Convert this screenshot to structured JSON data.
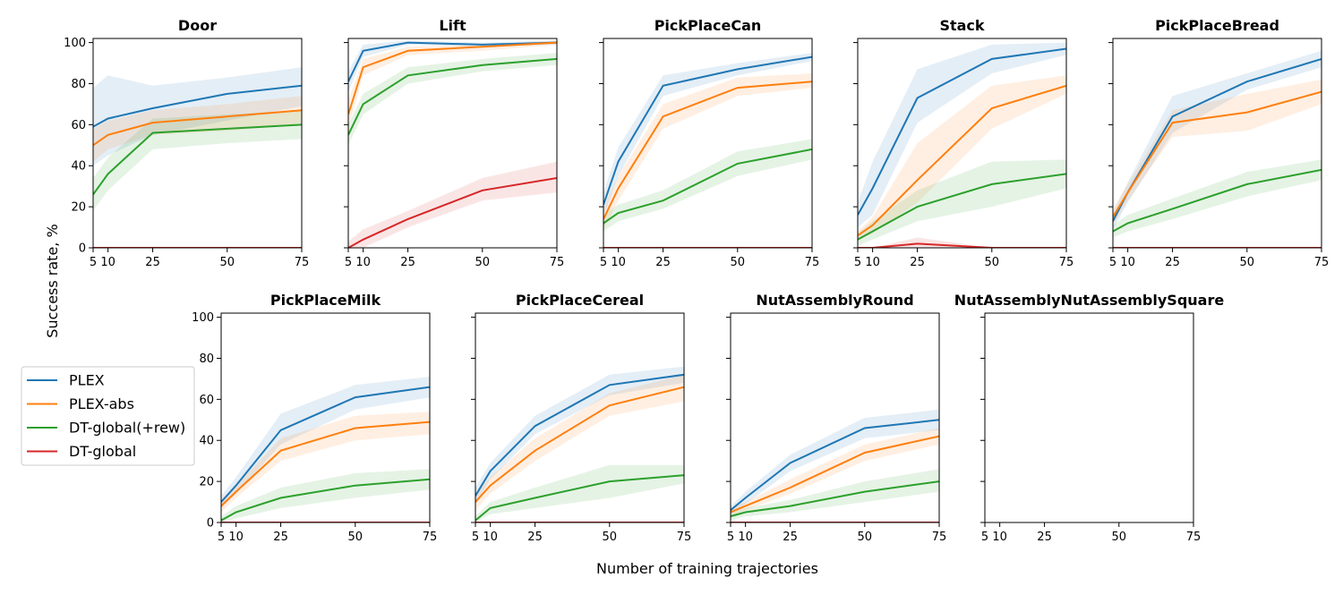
{
  "chart_data": {
    "type": "line",
    "xlabel": "Number of training trajectories",
    "ylabel": "Success rate, %",
    "x": [
      5,
      10,
      25,
      50,
      75
    ],
    "xticks": [
      "5",
      "10",
      "25",
      "50",
      "75"
    ],
    "yticks": [
      "0",
      "20",
      "40",
      "60",
      "80",
      "100"
    ],
    "ylim": [
      0,
      102
    ],
    "xlim": [
      5,
      75
    ],
    "grid": false,
    "legend_position": "left",
    "series_styles": [
      {
        "name": "PLEX",
        "color": "#1f77b4"
      },
      {
        "name": "PLEX-abs",
        "color": "#ff7f0e"
      },
      {
        "name": "DT-global(+rew)",
        "color": "#2ca02c"
      },
      {
        "name": "DT-global",
        "color": "#d62728"
      }
    ],
    "panels": [
      {
        "title": "Door",
        "series": [
          {
            "name": "PLEX",
            "values": [
              59,
              63,
              68,
              75,
              79
            ],
            "lower": [
              40,
              45,
              55,
              62,
              69
            ],
            "upper": [
              78,
              84,
              79,
              83,
              88
            ]
          },
          {
            "name": "PLEX-abs",
            "values": [
              50,
              55,
              61,
              64,
              67
            ],
            "lower": [
              42,
              48,
              55,
              57,
              60
            ],
            "upper": [
              58,
              62,
              67,
              70,
              74
            ]
          },
          {
            "name": "DT-global(+rew)",
            "values": [
              26,
              36,
              56,
              58,
              60
            ],
            "lower": [
              18,
              28,
              48,
              51,
              53
            ],
            "upper": [
              34,
              44,
              63,
              65,
              67
            ]
          },
          {
            "name": "DT-global",
            "values": [
              0,
              0,
              0,
              0,
              0
            ],
            "lower": [
              0,
              0,
              0,
              0,
              0
            ],
            "upper": [
              0,
              0,
              0,
              0,
              0
            ]
          }
        ]
      },
      {
        "title": "Lift",
        "series": [
          {
            "name": "PLEX",
            "values": [
              81,
              96,
              100,
              99,
              100
            ],
            "lower": [
              76,
              93,
              99,
              98,
              99
            ],
            "upper": [
              86,
              99,
              101,
              100,
              101
            ]
          },
          {
            "name": "PLEX-abs",
            "values": [
              65,
              88,
              96,
              98,
              100
            ],
            "lower": [
              58,
              84,
              94,
              96,
              99
            ],
            "upper": [
              72,
              92,
              98,
              99,
              101
            ]
          },
          {
            "name": "DT-global(+rew)",
            "values": [
              55,
              70,
              84,
              89,
              92
            ],
            "lower": [
              50,
              65,
              80,
              86,
              89
            ],
            "upper": [
              60,
              75,
              88,
              92,
              95
            ]
          },
          {
            "name": "DT-global",
            "values": [
              0,
              4,
              14,
              28,
              34
            ],
            "lower": [
              0,
              0,
              10,
              23,
              27
            ],
            "upper": [
              3,
              9,
              18,
              34,
              42
            ]
          }
        ]
      },
      {
        "title": "PickPlaceCan",
        "series": [
          {
            "name": "PLEX",
            "values": [
              21,
              42,
              79,
              87,
              93
            ],
            "lower": [
              15,
              35,
              74,
              84,
              91
            ],
            "upper": [
              27,
              49,
              84,
              90,
              95
            ]
          },
          {
            "name": "PLEX-abs",
            "values": [
              14,
              29,
              64,
              78,
              81
            ],
            "lower": [
              9,
              23,
              58,
              74,
              78
            ],
            "upper": [
              19,
              35,
              70,
              83,
              85
            ]
          },
          {
            "name": "DT-global(+rew)",
            "values": [
              12,
              17,
              23,
              41,
              48
            ],
            "lower": [
              8,
              13,
              19,
              35,
              43
            ],
            "upper": [
              16,
              21,
              28,
              47,
              53
            ]
          },
          {
            "name": "DT-global",
            "values": [
              0,
              0,
              0,
              0,
              0
            ],
            "lower": [
              0,
              0,
              0,
              0,
              0
            ],
            "upper": [
              0,
              0,
              0,
              0,
              0
            ]
          }
        ]
      },
      {
        "title": "Stack",
        "series": [
          {
            "name": "PLEX",
            "values": [
              16,
              29,
              73,
              92,
              97
            ],
            "lower": [
              10,
              16,
              61,
              85,
              94
            ],
            "upper": [
              22,
              42,
              87,
              99,
              100
            ]
          },
          {
            "name": "PLEX-abs",
            "values": [
              6,
              11,
              33,
              68,
              79
            ],
            "lower": [
              4,
              7,
              22,
              58,
              75
            ],
            "upper": [
              8,
              15,
              51,
              79,
              84
            ]
          },
          {
            "name": "DT-global(+rew)",
            "values": [
              4,
              8,
              20,
              31,
              36
            ],
            "lower": [
              1,
              4,
              13,
              20,
              29
            ],
            "upper": [
              7,
              13,
              28,
              42,
              43
            ]
          },
          {
            "name": "DT-global",
            "values": [
              0,
              0,
              2,
              0,
              0
            ],
            "lower": [
              0,
              0,
              0,
              0,
              0
            ],
            "upper": [
              0,
              0,
              5,
              0,
              0
            ]
          }
        ]
      },
      {
        "title": "PickPlaceBread",
        "series": [
          {
            "name": "PLEX",
            "values": [
              13,
              27,
              64,
              81,
              92
            ],
            "lower": [
              9,
              22,
              56,
              77,
              88
            ],
            "upper": [
              17,
              32,
              74,
              85,
              96
            ]
          },
          {
            "name": "PLEX-abs",
            "values": [
              15,
              27,
              61,
              66,
              76
            ],
            "lower": [
              11,
              23,
              54,
              57,
              70
            ],
            "upper": [
              19,
              31,
              67,
              75,
              82
            ]
          },
          {
            "name": "DT-global(+rew)",
            "values": [
              8,
              12,
              19,
              31,
              38
            ],
            "lower": [
              5,
              8,
              14,
              25,
              33
            ],
            "upper": [
              11,
              16,
              24,
              37,
              43
            ]
          },
          {
            "name": "DT-global",
            "values": [
              0,
              0,
              0,
              0,
              0
            ],
            "lower": [
              0,
              0,
              0,
              0,
              0
            ],
            "upper": [
              0,
              0,
              0,
              0,
              0
            ]
          }
        ]
      },
      {
        "title": "PickPlaceMilk",
        "series": [
          {
            "name": "PLEX",
            "values": [
              10,
              18,
              45,
              61,
              66
            ],
            "lower": [
              7,
              14,
              38,
              55,
              61
            ],
            "upper": [
              13,
              22,
              53,
              67,
              71
            ]
          },
          {
            "name": "PLEX-abs",
            "values": [
              8,
              15,
              35,
              46,
              49
            ],
            "lower": [
              5,
              12,
              30,
              40,
              43
            ],
            "upper": [
              11,
              18,
              41,
              52,
              54
            ]
          },
          {
            "name": "DT-global(+rew)",
            "values": [
              1,
              5,
              12,
              18,
              21
            ],
            "lower": [
              0,
              2,
              7,
              12,
              16
            ],
            "upper": [
              3,
              8,
              17,
              24,
              26
            ]
          },
          {
            "name": "DT-global",
            "values": [
              0,
              0,
              0,
              0,
              0
            ],
            "lower": [
              0,
              0,
              0,
              0,
              0
            ],
            "upper": [
              0,
              0,
              0,
              0,
              0
            ]
          }
        ]
      },
      {
        "title": "PickPlaceCereal",
        "series": [
          {
            "name": "PLEX",
            "values": [
              13,
              25,
              47,
              67,
              72
            ],
            "lower": [
              9,
              21,
              43,
              62,
              68
            ],
            "upper": [
              17,
              29,
              52,
              72,
              76
            ]
          },
          {
            "name": "PLEX-abs",
            "values": [
              10,
              18,
              35,
              57,
              66
            ],
            "lower": [
              6,
              14,
              30,
              52,
              59
            ],
            "upper": [
              14,
              22,
              41,
              63,
              72
            ]
          },
          {
            "name": "DT-global(+rew)",
            "values": [
              1,
              7,
              12,
              20,
              23
            ],
            "lower": [
              0,
              4,
              7,
              12,
              19
            ],
            "upper": [
              3,
              10,
              17,
              28,
              28
            ]
          },
          {
            "name": "DT-global",
            "values": [
              0,
              0,
              0,
              0,
              0
            ],
            "lower": [
              0,
              0,
              0,
              0,
              0
            ],
            "upper": [
              0,
              0,
              0,
              0,
              0
            ]
          }
        ]
      },
      {
        "title": "NutAssemblyRound",
        "series": [
          {
            "name": "PLEX",
            "values": [
              6,
              12,
              29,
              46,
              50
            ],
            "lower": [
              4,
              9,
              25,
              41,
              45
            ],
            "upper": [
              8,
              15,
              33,
              51,
              55
            ]
          },
          {
            "name": "PLEX-abs",
            "values": [
              5,
              8,
              17,
              34,
              42
            ],
            "lower": [
              3,
              6,
              14,
              30,
              38
            ],
            "upper": [
              7,
              10,
              21,
              38,
              46
            ]
          },
          {
            "name": "DT-global(+rew)",
            "values": [
              3,
              5,
              8,
              15,
              20
            ],
            "lower": [
              1,
              3,
              5,
              10,
              15
            ],
            "upper": [
              5,
              7,
              11,
              20,
              26
            ]
          },
          {
            "name": "DT-global",
            "values": [
              0,
              0,
              0,
              0,
              0
            ],
            "lower": [
              0,
              0,
              0,
              0,
              0
            ],
            "upper": [
              0,
              0,
              0,
              0,
              0
            ]
          }
        ]
      },
      {
        "title": "NutAssemblyNutAssemblySquare",
        "series": []
      }
    ]
  }
}
